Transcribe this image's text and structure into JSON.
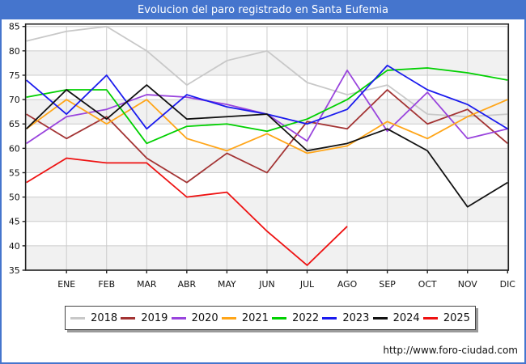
{
  "window": {
    "title": "Evolucion del paro registrado en Santa Eufemia"
  },
  "footer": {
    "url": "http://www.foro-ciudad.com"
  },
  "colors": {
    "banner": "#4575cd",
    "plot_band": "#f1f1f1",
    "grid": "#cccccc",
    "frame": "#222222",
    "axis_text": "#111111"
  },
  "chart_data": {
    "type": "line",
    "title": "Evolucion del paro registrado en Santa Eufemia",
    "xlabel": "",
    "ylabel": "",
    "x_tick_labels": [
      "ENE",
      "FEB",
      "MAR",
      "ABR",
      "MAY",
      "JUN",
      "JUL",
      "AGO",
      "SEP",
      "OCT",
      "NOV",
      "DIC"
    ],
    "y_ticks": [
      85,
      80,
      75,
      70,
      65,
      60,
      55,
      50,
      45,
      40,
      35
    ],
    "ylim": [
      35,
      85
    ],
    "grid": true,
    "legend_position": "bottom",
    "note": "Each series starts with one extra point drawn at the plot left edge, before the ENE tick.",
    "series": [
      {
        "name": "2018",
        "color": "#c8c8c8",
        "values": [
          82,
          84,
          85,
          80,
          73,
          78,
          80,
          73.5,
          71,
          73,
          67,
          66.5,
          67
        ]
      },
      {
        "name": "2019",
        "color": "#a33333",
        "values": [
          67,
          62,
          66.5,
          58,
          53,
          59,
          55,
          65.5,
          64,
          72,
          65,
          68,
          61
        ]
      },
      {
        "name": "2020",
        "color": "#9944dd",
        "values": [
          61,
          66.5,
          68,
          71,
          70.5,
          69,
          67,
          61.5,
          76,
          63.5,
          71.5,
          62,
          64
        ]
      },
      {
        "name": "2021",
        "color": "#ffa518",
        "values": [
          64,
          70,
          65,
          70,
          62,
          59.5,
          63,
          59,
          60.5,
          65.5,
          62,
          66.5,
          70
        ]
      },
      {
        "name": "2022",
        "color": "#00d000",
        "values": [
          70.5,
          72,
          72,
          61,
          64.5,
          65,
          63.5,
          66,
          70,
          76,
          76.5,
          75.5,
          74
        ]
      },
      {
        "name": "2023",
        "color": "#1a1aee",
        "values": [
          74,
          67,
          75,
          64,
          71,
          68.5,
          67,
          65,
          68,
          77,
          72,
          69,
          64
        ]
      },
      {
        "name": "2024",
        "color": "#111111",
        "values": [
          64,
          72,
          66,
          73,
          66,
          66.5,
          67,
          59.5,
          61,
          64,
          59.5,
          48,
          53
        ]
      },
      {
        "name": "2025",
        "color": "#ee1111",
        "values": [
          53,
          58,
          57,
          57,
          50,
          51,
          43,
          36,
          44
        ]
      }
    ]
  }
}
